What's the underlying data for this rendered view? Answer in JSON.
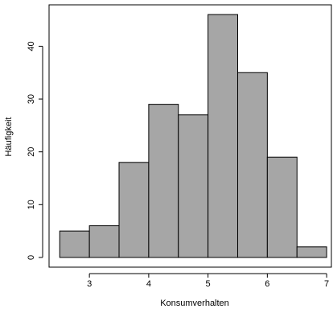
{
  "chart_data": {
    "type": "bar",
    "subtype": "histogram",
    "xlabel": "Konsumverhalten",
    "ylabel": "Häufigkeit",
    "bins": [
      {
        "x0": 2.5,
        "x1": 3.0,
        "count": 5
      },
      {
        "x0": 3.0,
        "x1": 3.5,
        "count": 6
      },
      {
        "x0": 3.5,
        "x1": 4.0,
        "count": 18
      },
      {
        "x0": 4.0,
        "x1": 4.5,
        "count": 29
      },
      {
        "x0": 4.5,
        "x1": 5.0,
        "count": 27
      },
      {
        "x0": 5.0,
        "x1": 5.5,
        "count": 46
      },
      {
        "x0": 5.5,
        "x1": 6.0,
        "count": 35
      },
      {
        "x0": 6.0,
        "x1": 6.5,
        "count": 19
      },
      {
        "x0": 6.5,
        "x1": 7.0,
        "count": 2
      }
    ],
    "xticks": [
      3,
      4,
      5,
      6,
      7
    ],
    "yticks": [
      0,
      10,
      20,
      30,
      40
    ],
    "xlim": [
      2.32,
      7.08
    ],
    "ylim": [
      -1.84,
      47.84
    ],
    "bar_color": "#a6a6a6",
    "edge_color": "#000000",
    "grid": false
  }
}
